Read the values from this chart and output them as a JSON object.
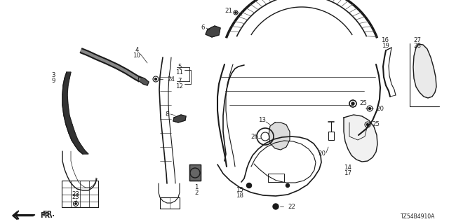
{
  "bg_color": "#ffffff",
  "line_color": "#1a1a1a",
  "label_color": "#222222",
  "part_code": "TZ54B4910A",
  "fig_w": 6.4,
  "fig_h": 3.2,
  "dpi": 100
}
